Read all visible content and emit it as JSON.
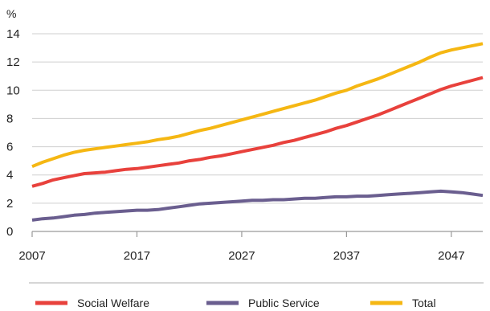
{
  "chart_data": {
    "type": "line",
    "unit_label": "%",
    "title": "",
    "xlabel": "",
    "ylabel": "",
    "x_ticks": [
      "2007",
      "2017",
      "2027",
      "2037",
      "2047"
    ],
    "y_ticks": [
      "0",
      "2",
      "4",
      "6",
      "8",
      "10",
      "12",
      "14"
    ],
    "xlim": [
      2007,
      2050
    ],
    "ylim": [
      0,
      14
    ],
    "grid": "horizontal",
    "legend_position": "bottom",
    "x": [
      2007,
      2008,
      2009,
      2010,
      2011,
      2012,
      2013,
      2014,
      2015,
      2016,
      2017,
      2018,
      2019,
      2020,
      2021,
      2022,
      2023,
      2024,
      2025,
      2026,
      2027,
      2028,
      2029,
      2030,
      2031,
      2032,
      2033,
      2034,
      2035,
      2036,
      2037,
      2038,
      2039,
      2040,
      2041,
      2042,
      2043,
      2044,
      2045,
      2046,
      2047,
      2048,
      2049,
      2050
    ],
    "series": [
      {
        "name": "Social Welfare",
        "color": "#e8413c",
        "values": [
          3.2,
          3.4,
          3.65,
          3.8,
          3.95,
          4.1,
          4.15,
          4.2,
          4.3,
          4.4,
          4.45,
          4.55,
          4.65,
          4.75,
          4.85,
          5.0,
          5.1,
          5.25,
          5.35,
          5.5,
          5.65,
          5.8,
          5.95,
          6.1,
          6.3,
          6.45,
          6.65,
          6.85,
          7.05,
          7.3,
          7.5,
          7.75,
          8.0,
          8.25,
          8.55,
          8.85,
          9.15,
          9.45,
          9.75,
          10.05,
          10.3,
          10.5,
          10.7,
          10.9
        ]
      },
      {
        "name": "Public Service",
        "color": "#6a5e8f",
        "values": [
          0.8,
          0.9,
          0.95,
          1.05,
          1.15,
          1.2,
          1.3,
          1.35,
          1.4,
          1.45,
          1.5,
          1.5,
          1.55,
          1.65,
          1.75,
          1.85,
          1.95,
          2.0,
          2.05,
          2.1,
          2.15,
          2.2,
          2.2,
          2.25,
          2.25,
          2.3,
          2.35,
          2.35,
          2.4,
          2.45,
          2.45,
          2.5,
          2.5,
          2.55,
          2.6,
          2.65,
          2.7,
          2.75,
          2.8,
          2.85,
          2.8,
          2.75,
          2.65,
          2.55
        ]
      },
      {
        "name": "Total",
        "color": "#f5b713",
        "values": [
          4.6,
          4.9,
          5.15,
          5.4,
          5.6,
          5.75,
          5.85,
          5.95,
          6.05,
          6.15,
          6.25,
          6.35,
          6.5,
          6.6,
          6.75,
          6.95,
          7.15,
          7.3,
          7.5,
          7.7,
          7.9,
          8.1,
          8.3,
          8.5,
          8.7,
          8.9,
          9.1,
          9.3,
          9.55,
          9.8,
          10.0,
          10.3,
          10.55,
          10.8,
          11.1,
          11.4,
          11.7,
          12.0,
          12.35,
          12.65,
          12.85,
          13.0,
          13.15,
          13.3
        ]
      }
    ]
  },
  "colors": {
    "grid": "#cfcfcf",
    "axis": "#9a9a9a",
    "separator": "#bdbdbd"
  }
}
